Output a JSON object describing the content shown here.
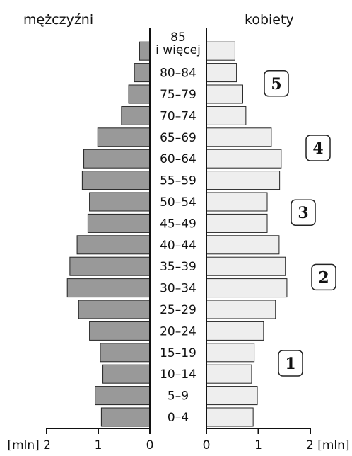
{
  "chart_data": {
    "type": "bar",
    "orientation": "horizontal",
    "layout": "population-pyramid",
    "titles": {
      "left": "mężczyźni",
      "right": "kobiety"
    },
    "unit": "[mln]",
    "categories": [
      "0–4",
      "5–9",
      "10–14",
      "15–19",
      "20–24",
      "25–29",
      "30–34",
      "35–39",
      "40–44",
      "45–49",
      "50–54",
      "55–59",
      "60–64",
      "65–69",
      "70–74",
      "75–79",
      "80–84",
      "85 i więcej"
    ],
    "category_lines": [
      [
        "0–4"
      ],
      [
        "5–9"
      ],
      [
        "10–14"
      ],
      [
        "15–19"
      ],
      [
        "20–24"
      ],
      [
        "25–29"
      ],
      [
        "30–34"
      ],
      [
        "35–39"
      ],
      [
        "40–44"
      ],
      [
        "45–49"
      ],
      [
        "50–54"
      ],
      [
        "55–59"
      ],
      [
        "60–64"
      ],
      [
        "65–69"
      ],
      [
        "70–74"
      ],
      [
        "75–79"
      ],
      [
        "80–84"
      ],
      [
        "85",
        "i więcej"
      ]
    ],
    "series": [
      {
        "name": "mężczyźni",
        "side": "left",
        "color": "#999999",
        "values": [
          0.94,
          1.06,
          0.91,
          0.96,
          1.17,
          1.38,
          1.6,
          1.55,
          1.41,
          1.2,
          1.17,
          1.31,
          1.28,
          1.01,
          0.55,
          0.41,
          0.3,
          0.2
        ]
      },
      {
        "name": "kobiety",
        "side": "right",
        "color": "#eeeeee",
        "values": [
          0.9,
          0.98,
          0.87,
          0.92,
          1.1,
          1.33,
          1.55,
          1.52,
          1.4,
          1.17,
          1.17,
          1.41,
          1.44,
          1.25,
          0.76,
          0.7,
          0.58,
          0.55
        ]
      }
    ],
    "x_ticks_left": [
      "2",
      "1",
      "0"
    ],
    "x_ticks_right": [
      "0",
      "1",
      "2"
    ],
    "xlim": [
      0,
      2
    ],
    "annotations": [
      {
        "label": "1",
        "categories": [
          "10–14",
          "15–19"
        ]
      },
      {
        "label": "2",
        "categories": [
          "30–34",
          "35–39"
        ]
      },
      {
        "label": "3",
        "categories": [
          "45–49",
          "50–54"
        ]
      },
      {
        "label": "4",
        "categories": [
          "60–64",
          "65–69"
        ]
      },
      {
        "label": "5",
        "categories": [
          "75–79",
          "80–84"
        ]
      }
    ]
  }
}
